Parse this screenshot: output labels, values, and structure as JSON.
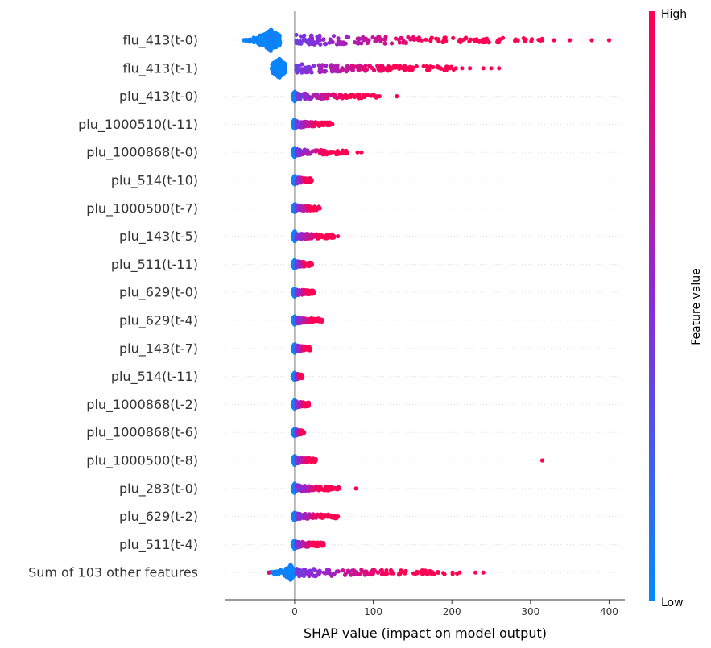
{
  "chart_data": {
    "type": "scatter",
    "plot_kind": "shap-beeswarm-summary",
    "xlabel": "SHAP value (impact on model output)",
    "xlim": [
      -88,
      420
    ],
    "xticks": [
      0,
      100,
      200,
      300,
      400
    ],
    "xtick_labels": [
      "0",
      "100",
      "200",
      "300",
      "400"
    ],
    "colorbar": {
      "title": "Feature value",
      "high_label": "High",
      "low_label": "Low",
      "high_color": "#ff0052",
      "mid_color": "#8a2bd8",
      "low_color": "#008bfb"
    },
    "features": [
      {
        "name": "flu_413(t-0)",
        "min": -65,
        "max": 400,
        "low_extent": -30,
        "spread": 1.0,
        "outliers": [
          315,
          330,
          350,
          378,
          400
        ]
      },
      {
        "name": "flu_413(t-1)",
        "min": -30,
        "max": 260,
        "low_extent": -20,
        "spread": 0.9,
        "outliers": [
          205,
          213,
          223,
          240,
          250,
          260
        ]
      },
      {
        "name": "plu_413(t-0)",
        "min": -5,
        "max": 130,
        "low_extent": 0,
        "spread": 0.45,
        "outliers": [
          108,
          130
        ]
      },
      {
        "name": "plu_1000510(t-11)",
        "min": -2,
        "max": 48,
        "low_extent": 0,
        "spread": 0.45,
        "outliers": [
          48
        ]
      },
      {
        "name": "plu_1000868(t-0)",
        "min": -5,
        "max": 85,
        "low_extent": 0,
        "spread": 0.45,
        "outliers": [
          67,
          80,
          85
        ]
      },
      {
        "name": "plu_514(t-10)",
        "min": -2,
        "max": 22,
        "low_extent": 0,
        "spread": 0.4,
        "outliers": [
          22
        ]
      },
      {
        "name": "plu_1000500(t-7)",
        "min": -2,
        "max": 32,
        "low_extent": 0,
        "spread": 0.4,
        "outliers": [
          32
        ]
      },
      {
        "name": "plu_143(t-5)",
        "min": -2,
        "max": 55,
        "low_extent": 0,
        "spread": 0.45,
        "outliers": [
          50,
          55
        ]
      },
      {
        "name": "plu_511(t-11)",
        "min": -5,
        "max": 22,
        "low_extent": 0,
        "spread": 0.4,
        "outliers": [
          22
        ]
      },
      {
        "name": "plu_629(t-0)",
        "min": -2,
        "max": 25,
        "low_extent": 0,
        "spread": 0.4,
        "outliers": [
          25
        ]
      },
      {
        "name": "plu_629(t-4)",
        "min": -5,
        "max": 35,
        "low_extent": 0,
        "spread": 0.4,
        "outliers": [
          35
        ]
      },
      {
        "name": "plu_143(t-7)",
        "min": -2,
        "max": 20,
        "low_extent": 0,
        "spread": 0.4,
        "outliers": [
          20
        ]
      },
      {
        "name": "plu_514(t-11)",
        "min": -2,
        "max": 10,
        "low_extent": 0,
        "spread": 0.35,
        "outliers": [
          10
        ]
      },
      {
        "name": "plu_1000868(t-2)",
        "min": -5,
        "max": 18,
        "low_extent": 0,
        "spread": 0.4,
        "outliers": [
          18
        ]
      },
      {
        "name": "plu_1000868(t-6)",
        "min": -2,
        "max": 12,
        "low_extent": 0,
        "spread": 0.35,
        "outliers": [
          12
        ]
      },
      {
        "name": "plu_1000500(t-8)",
        "min": -2,
        "max": 315,
        "low_extent": 0,
        "spread": 0.4,
        "outliers": [
          27,
          315
        ]
      },
      {
        "name": "plu_283(t-0)",
        "min": -5,
        "max": 78,
        "low_extent": 0,
        "spread": 0.45,
        "outliers": [
          57,
          78
        ]
      },
      {
        "name": "plu_629(t-2)",
        "min": -2,
        "max": 55,
        "low_extent": 0,
        "spread": 0.4,
        "outliers": [
          55
        ]
      },
      {
        "name": "plu_511(t-4)",
        "min": -2,
        "max": 37,
        "low_extent": 0,
        "spread": 0.4,
        "outliers": [
          37
        ]
      },
      {
        "name": "Sum of 103 other features",
        "min": -33,
        "max": 240,
        "low_extent": -5,
        "spread": 0.7,
        "outliers": [
          -33,
          210,
          230,
          240
        ]
      }
    ]
  }
}
